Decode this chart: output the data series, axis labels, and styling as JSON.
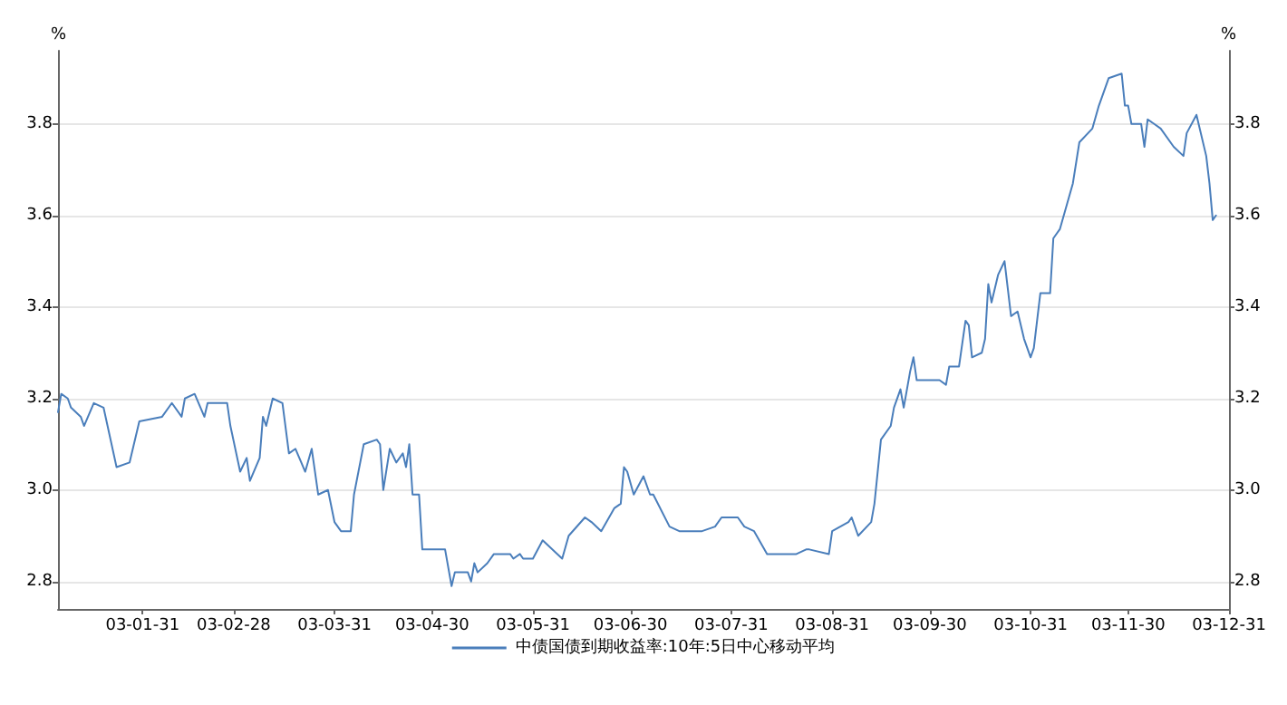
{
  "chart_data": {
    "type": "line",
    "ylabel": "%",
    "y2label": "%",
    "x": [
      "2003-01-05",
      "2003-01-06",
      "2003-01-08",
      "2003-01-09",
      "2003-01-12",
      "2003-01-13",
      "2003-01-16",
      "2003-01-19",
      "2003-01-23",
      "2003-01-27",
      "2003-01-30",
      "2003-02-06",
      "2003-02-09",
      "2003-02-12",
      "2003-02-13",
      "2003-02-16",
      "2003-02-19",
      "2003-02-20",
      "2003-02-24",
      "2003-02-26",
      "2003-02-27",
      "2003-03-02",
      "2003-03-04",
      "2003-03-05",
      "2003-03-08",
      "2003-03-09",
      "2003-03-10",
      "2003-03-12",
      "2003-03-15",
      "2003-03-17",
      "2003-03-19",
      "2003-03-22",
      "2003-03-24",
      "2003-03-26",
      "2003-03-29",
      "2003-03-31",
      "2003-04-02",
      "2003-04-05",
      "2003-04-06",
      "2003-04-09",
      "2003-04-13",
      "2003-04-14",
      "2003-04-15",
      "2003-04-17",
      "2003-04-19",
      "2003-04-21",
      "2003-04-22",
      "2003-04-23",
      "2003-04-24",
      "2003-04-26",
      "2003-04-27",
      "2003-05-04",
      "2003-05-06",
      "2003-05-07",
      "2003-05-11",
      "2003-05-12",
      "2003-05-13",
      "2003-05-14",
      "2003-05-17",
      "2003-05-19",
      "2003-05-24",
      "2003-05-25",
      "2003-05-27",
      "2003-05-28",
      "2003-05-31",
      "2003-06-03",
      "2003-06-09",
      "2003-06-11",
      "2003-06-16",
      "2003-06-18",
      "2003-06-21",
      "2003-06-25",
      "2003-06-27",
      "2003-06-28",
      "2003-06-29",
      "2003-07-01",
      "2003-07-04",
      "2003-07-06",
      "2003-07-07",
      "2003-07-12",
      "2003-07-15",
      "2003-07-22",
      "2003-07-26",
      "2003-07-28",
      "2003-08-02",
      "2003-08-04",
      "2003-08-07",
      "2003-08-11",
      "2003-08-15",
      "2003-08-20",
      "2003-08-23",
      "2003-08-24",
      "2003-08-30",
      "2003-08-31",
      "2003-09-05",
      "2003-09-06",
      "2003-09-08",
      "2003-09-12",
      "2003-09-13",
      "2003-09-15",
      "2003-09-18",
      "2003-09-19",
      "2003-09-21",
      "2003-09-22",
      "2003-09-24",
      "2003-09-25",
      "2003-09-26",
      "2003-10-03",
      "2003-10-05",
      "2003-10-06",
      "2003-10-09",
      "2003-10-11",
      "2003-10-12",
      "2003-10-13",
      "2003-10-16",
      "2003-10-17",
      "2003-10-18",
      "2003-10-19",
      "2003-10-21",
      "2003-10-23",
      "2003-10-24",
      "2003-10-25",
      "2003-10-27",
      "2003-10-29",
      "2003-10-31",
      "2003-11-01",
      "2003-11-03",
      "2003-11-06",
      "2003-11-07",
      "2003-11-09",
      "2003-11-13",
      "2003-11-15",
      "2003-11-19",
      "2003-11-21",
      "2003-11-24",
      "2003-11-28",
      "2003-11-29",
      "2003-11-30",
      "2003-12-01",
      "2003-12-04",
      "2003-12-05",
      "2003-12-06",
      "2003-12-08",
      "2003-12-10",
      "2003-12-14",
      "2003-12-17",
      "2003-12-18",
      "2003-12-21",
      "2003-12-24",
      "2003-12-25",
      "2003-12-26",
      "2003-12-27"
    ],
    "series": [
      {
        "name": "中债国债到期收益率:10年:5日中心移动平均",
        "color": "#4a7ebb",
        "values": [
          3.17,
          3.21,
          3.2,
          3.18,
          3.16,
          3.14,
          3.19,
          3.18,
          3.05,
          3.06,
          3.15,
          3.16,
          3.19,
          3.16,
          3.2,
          3.21,
          3.16,
          3.19,
          3.19,
          3.19,
          3.14,
          3.04,
          3.07,
          3.02,
          3.07,
          3.16,
          3.14,
          3.2,
          3.19,
          3.08,
          3.09,
          3.04,
          3.09,
          2.99,
          3.0,
          2.93,
          2.91,
          2.91,
          2.99,
          3.1,
          3.11,
          3.1,
          3.0,
          3.09,
          3.06,
          3.08,
          3.05,
          3.1,
          2.99,
          2.99,
          2.87,
          2.87,
          2.79,
          2.82,
          2.82,
          2.8,
          2.84,
          2.82,
          2.84,
          2.86,
          2.86,
          2.85,
          2.86,
          2.85,
          2.85,
          2.89,
          2.85,
          2.9,
          2.94,
          2.93,
          2.91,
          2.96,
          2.97,
          3.05,
          3.04,
          2.99,
          3.03,
          2.99,
          2.99,
          2.92,
          2.91,
          2.91,
          2.92,
          2.94,
          2.94,
          2.92,
          2.91,
          2.86,
          2.86,
          2.86,
          2.87,
          2.87,
          2.86,
          2.91,
          2.93,
          2.94,
          2.9,
          2.93,
          2.97,
          3.11,
          3.14,
          3.18,
          3.22,
          3.18,
          3.26,
          3.29,
          3.24,
          3.24,
          3.23,
          3.27,
          3.27,
          3.37,
          3.36,
          3.29,
          3.3,
          3.33,
          3.45,
          3.41,
          3.47,
          3.5,
          3.44,
          3.38,
          3.39,
          3.33,
          3.29,
          3.31,
          3.43,
          3.43,
          3.55,
          3.57,
          3.67,
          3.76,
          3.79,
          3.84,
          3.9,
          3.91,
          3.84,
          3.84,
          3.8,
          3.8,
          3.75,
          3.81,
          3.8,
          3.79,
          3.75,
          3.73,
          3.78,
          3.82,
          3.73,
          3.67,
          3.59,
          3.6
        ]
      }
    ],
    "xlim": [
      "2003-01-05",
      "2003-12-31"
    ],
    "xticks": [
      {
        "value": "2003-01-31",
        "label": "03-01-31"
      },
      {
        "value": "2003-02-28",
        "label": "03-02-28"
      },
      {
        "value": "2003-03-31",
        "label": "03-03-31"
      },
      {
        "value": "2003-04-30",
        "label": "03-04-30"
      },
      {
        "value": "2003-05-31",
        "label": "03-05-31"
      },
      {
        "value": "2003-06-30",
        "label": "03-06-30"
      },
      {
        "value": "2003-07-31",
        "label": "03-07-31"
      },
      {
        "value": "2003-08-31",
        "label": "03-08-31"
      },
      {
        "value": "2003-09-30",
        "label": "03-09-30"
      },
      {
        "value": "2003-10-31",
        "label": "03-10-31"
      },
      {
        "value": "2003-11-30",
        "label": "03-11-30"
      },
      {
        "value": "2003-12-31",
        "label": "03-12-31"
      }
    ],
    "ylim": [
      2.74,
      3.96
    ],
    "yticks": [
      {
        "value": 2.8,
        "label": "2.8"
      },
      {
        "value": 3.0,
        "label": "3.0"
      },
      {
        "value": 3.2,
        "label": "3.2"
      },
      {
        "value": 3.4,
        "label": "3.4"
      },
      {
        "value": 3.6,
        "label": "3.6"
      },
      {
        "value": 3.8,
        "label": "3.8"
      }
    ],
    "y2lim": [
      2.74,
      3.96
    ],
    "y2ticks": [
      {
        "value": 2.8,
        "label": "2.8"
      },
      {
        "value": 3.0,
        "label": "3.0"
      },
      {
        "value": 3.2,
        "label": "3.2"
      },
      {
        "value": 3.4,
        "label": "3.4"
      },
      {
        "value": 3.6,
        "label": "3.6"
      },
      {
        "value": 3.8,
        "label": "3.8"
      }
    ],
    "grid": "y",
    "legend": "bottom",
    "marker": "none",
    "line_style": "solid"
  }
}
